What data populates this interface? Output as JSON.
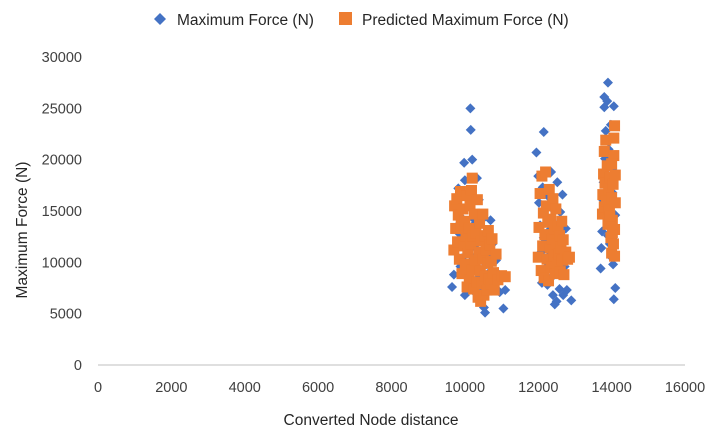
{
  "chart_data": {
    "type": "scatter",
    "title": "",
    "xlabel": "Converted Node distance",
    "ylabel": "Maximum Force (N)",
    "xlim": [
      0,
      16000
    ],
    "ylim": [
      0,
      30000
    ],
    "xticks": [
      0,
      2000,
      4000,
      6000,
      8000,
      10000,
      12000,
      14000,
      16000
    ],
    "yticks": [
      0,
      5000,
      10000,
      15000,
      20000,
      25000,
      30000
    ],
    "xtick_labels": [
      "0",
      "2000",
      "4000",
      "6000",
      "8000",
      "10000",
      "12000",
      "14000",
      "16000"
    ],
    "ytick_labels": [
      "0",
      "5000",
      "10000",
      "15000",
      "20000",
      "25000",
      "30000"
    ],
    "grid": false,
    "legend_position": "top",
    "series": [
      {
        "name": "Maximum Force (N)",
        "marker": "diamond",
        "color": "#4472C4",
        "points": [
          [
            9650,
            7600
          ],
          [
            9700,
            8800
          ],
          [
            9750,
            11500
          ],
          [
            9780,
            13500
          ],
          [
            9800,
            15000
          ],
          [
            9820,
            17200
          ],
          [
            9850,
            12800
          ],
          [
            9880,
            9600
          ],
          [
            9900,
            16500
          ],
          [
            9920,
            10400
          ],
          [
            9950,
            14200
          ],
          [
            9980,
            19700
          ],
          [
            10000,
            18000
          ],
          [
            10000,
            6800
          ],
          [
            10020,
            11800
          ],
          [
            10050,
            7300
          ],
          [
            10060,
            13000
          ],
          [
            10080,
            15500
          ],
          [
            10100,
            9000
          ],
          [
            10120,
            12200
          ],
          [
            10130,
            8100
          ],
          [
            10150,
            25000
          ],
          [
            10160,
            22900
          ],
          [
            10170,
            16600
          ],
          [
            10200,
            20000
          ],
          [
            10200,
            10500
          ],
          [
            10220,
            14300
          ],
          [
            10250,
            7700
          ],
          [
            10260,
            11500
          ],
          [
            10280,
            13800
          ],
          [
            10300,
            9500
          ],
          [
            10320,
            6900
          ],
          [
            10350,
            12600
          ],
          [
            10380,
            16100
          ],
          [
            10400,
            8600
          ],
          [
            10420,
            10800
          ],
          [
            10450,
            14100
          ],
          [
            10480,
            7200
          ],
          [
            10500,
            11200
          ],
          [
            10520,
            5600
          ],
          [
            10550,
            5100
          ],
          [
            10580,
            9800
          ],
          [
            10600,
            8000
          ],
          [
            10620,
            12500
          ],
          [
            10650,
            10500
          ],
          [
            10680,
            7800
          ],
          [
            10700,
            14100
          ],
          [
            10720,
            9200
          ],
          [
            10750,
            11800
          ],
          [
            10800,
            7500
          ],
          [
            10850,
            10200
          ],
          [
            10900,
            8900
          ],
          [
            10950,
            7100
          ],
          [
            11050,
            5500
          ],
          [
            11100,
            7300
          ],
          [
            10330,
            18200
          ],
          [
            11950,
            20700
          ],
          [
            12000,
            18400
          ],
          [
            12020,
            15800
          ],
          [
            12050,
            13600
          ],
          [
            12080,
            11000
          ],
          [
            12100,
            8000
          ],
          [
            12120,
            17300
          ],
          [
            12150,
            22700
          ],
          [
            12180,
            14600
          ],
          [
            12200,
            12100
          ],
          [
            12220,
            9500
          ],
          [
            12250,
            7800
          ],
          [
            12280,
            16400
          ],
          [
            12300,
            13100
          ],
          [
            12320,
            10700
          ],
          [
            12350,
            18800
          ],
          [
            12380,
            8600
          ],
          [
            12400,
            6800
          ],
          [
            12420,
            15100
          ],
          [
            12450,
            11800
          ],
          [
            12480,
            9200
          ],
          [
            12500,
            6200
          ],
          [
            12520,
            17800
          ],
          [
            12550,
            13800
          ],
          [
            12560,
            10200
          ],
          [
            12580,
            7400
          ],
          [
            12600,
            14900
          ],
          [
            12620,
            12000
          ],
          [
            12650,
            8800
          ],
          [
            12660,
            16600
          ],
          [
            12680,
            6800
          ],
          [
            12700,
            11200
          ],
          [
            12720,
            9600
          ],
          [
            12750,
            13300
          ],
          [
            12780,
            7300
          ],
          [
            12820,
            10300
          ],
          [
            12900,
            6300
          ],
          [
            12450,
            5900
          ],
          [
            12350,
            16200
          ],
          [
            12150,
            12400
          ],
          [
            13700,
            9400
          ],
          [
            13720,
            11400
          ],
          [
            13740,
            13000
          ],
          [
            13760,
            16100
          ],
          [
            13780,
            17800
          ],
          [
            13800,
            25100
          ],
          [
            13800,
            26100
          ],
          [
            13820,
            20100
          ],
          [
            13840,
            22800
          ],
          [
            13850,
            18500
          ],
          [
            13860,
            14700
          ],
          [
            13880,
            25700
          ],
          [
            13900,
            27500
          ],
          [
            13900,
            12600
          ],
          [
            13920,
            21000
          ],
          [
            13940,
            15800
          ],
          [
            13950,
            11800
          ],
          [
            13960,
            19300
          ],
          [
            13980,
            23400
          ],
          [
            14000,
            10500
          ],
          [
            14000,
            13600
          ],
          [
            14020,
            16800
          ],
          [
            14040,
            9800
          ],
          [
            14050,
            12200
          ],
          [
            14060,
            25200
          ],
          [
            14080,
            18800
          ],
          [
            14100,
            14600
          ],
          [
            14100,
            7500
          ],
          [
            14060,
            6400
          ],
          [
            14020,
            10700
          ],
          [
            13990,
            20500
          ]
        ]
      },
      {
        "name": "Predicted Maximum Force (N)",
        "marker": "square",
        "color": "#ED7D31",
        "points": [
          [
            9700,
            11200
          ],
          [
            9720,
            15500
          ],
          [
            9750,
            13300
          ],
          [
            9780,
            16200
          ],
          [
            9800,
            12000
          ],
          [
            9820,
            14600
          ],
          [
            9850,
            10300
          ],
          [
            9880,
            16900
          ],
          [
            9900,
            13600
          ],
          [
            9920,
            8900
          ],
          [
            9950,
            15200
          ],
          [
            9980,
            11600
          ],
          [
            10000,
            14000
          ],
          [
            10010,
            9800
          ],
          [
            10030,
            12600
          ],
          [
            10050,
            16500
          ],
          [
            10060,
            7600
          ],
          [
            10080,
            10900
          ],
          [
            10100,
            13300
          ],
          [
            10120,
            8300
          ],
          [
            10140,
            15500
          ],
          [
            10160,
            11800
          ],
          [
            10180,
            17000
          ],
          [
            10200,
            9300
          ],
          [
            10200,
            18200
          ],
          [
            10220,
            12600
          ],
          [
            10240,
            7400
          ],
          [
            10260,
            14700
          ],
          [
            10280,
            10200
          ],
          [
            10300,
            12900
          ],
          [
            10320,
            8100
          ],
          [
            10340,
            16100
          ],
          [
            10360,
            6600
          ],
          [
            10380,
            11000
          ],
          [
            10400,
            13800
          ],
          [
            10420,
            9200
          ],
          [
            10430,
            6200
          ],
          [
            10450,
            12100
          ],
          [
            10470,
            7900
          ],
          [
            10490,
            14700
          ],
          [
            10500,
            10300
          ],
          [
            10520,
            6800
          ],
          [
            10540,
            12600
          ],
          [
            10560,
            8700
          ],
          [
            10580,
            11200
          ],
          [
            10600,
            7300
          ],
          [
            10620,
            9900
          ],
          [
            10640,
            13100
          ],
          [
            10660,
            8400
          ],
          [
            10680,
            11700
          ],
          [
            10700,
            7900
          ],
          [
            10720,
            10100
          ],
          [
            10740,
            12300
          ],
          [
            10780,
            9000
          ],
          [
            10800,
            7300
          ],
          [
            10850,
            10800
          ],
          [
            10900,
            8300
          ],
          [
            11000,
            8700
          ],
          [
            11100,
            8600
          ],
          [
            12000,
            10500
          ],
          [
            12020,
            13400
          ],
          [
            12050,
            16700
          ],
          [
            12080,
            9200
          ],
          [
            12100,
            18400
          ],
          [
            12120,
            11600
          ],
          [
            12140,
            14800
          ],
          [
            12160,
            8500
          ],
          [
            12180,
            12700
          ],
          [
            12200,
            18800
          ],
          [
            12220,
            15500
          ],
          [
            12240,
            10300
          ],
          [
            12260,
            13900
          ],
          [
            12280,
            8200
          ],
          [
            12300,
            17100
          ],
          [
            12320,
            11400
          ],
          [
            12340,
            14200
          ],
          [
            12360,
            9500
          ],
          [
            12380,
            12300
          ],
          [
            12400,
            16200
          ],
          [
            12420,
            10600
          ],
          [
            12440,
            13200
          ],
          [
            12460,
            8900
          ],
          [
            12480,
            15200
          ],
          [
            12500,
            11800
          ],
          [
            12520,
            9900
          ],
          [
            12540,
            13500
          ],
          [
            12560,
            10800
          ],
          [
            12580,
            12600
          ],
          [
            12600,
            9100
          ],
          [
            12620,
            11400
          ],
          [
            12640,
            14000
          ],
          [
            12660,
            10200
          ],
          [
            12680,
            12200
          ],
          [
            12700,
            8800
          ],
          [
            12750,
            11000
          ],
          [
            12800,
            10300
          ],
          [
            12850,
            10500
          ],
          [
            13750,
            14700
          ],
          [
            13760,
            16600
          ],
          [
            13780,
            18600
          ],
          [
            13800,
            20800
          ],
          [
            13800,
            15400
          ],
          [
            13820,
            17700
          ],
          [
            13840,
            21900
          ],
          [
            13860,
            16000
          ],
          [
            13880,
            19400
          ],
          [
            13900,
            13700
          ],
          [
            13920,
            17100
          ],
          [
            13940,
            15100
          ],
          [
            13960,
            18300
          ],
          [
            13980,
            12400
          ],
          [
            14000,
            16300
          ],
          [
            14000,
            10900
          ],
          [
            14020,
            14100
          ],
          [
            14040,
            17600
          ],
          [
            14050,
            11800
          ],
          [
            14060,
            20400
          ],
          [
            14080,
            13200
          ],
          [
            14080,
            23300
          ],
          [
            14100,
            15800
          ],
          [
            14100,
            18500
          ],
          [
            14060,
            22100
          ],
          [
            14020,
            12900
          ],
          [
            14080,
            10600
          ],
          [
            14000,
            19600
          ],
          [
            13950,
            14500
          ]
        ]
      }
    ]
  }
}
